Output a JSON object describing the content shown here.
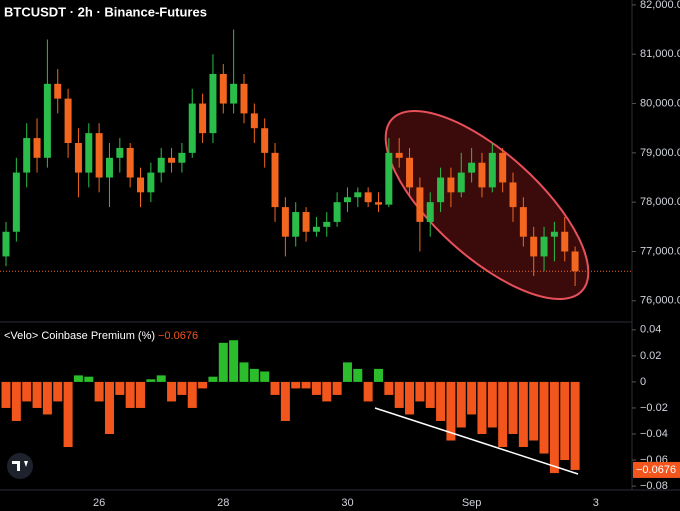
{
  "chart_data": [
    {
      "type": "candlestick",
      "title": "BTCUSDT · 2h · Binance-Futures",
      "up_color": "#2bbd4a",
      "down_color": "#f2661f",
      "open": [
        76900,
        77400,
        78600,
        79300,
        78900,
        80400,
        80100,
        79200,
        78600,
        79400,
        78500,
        78900,
        79100,
        78500,
        78200,
        78600,
        78900,
        78800,
        79000,
        80000,
        79400,
        80600,
        80000,
        80400,
        79800,
        79500,
        79000,
        77900,
        77300,
        77800,
        77400,
        77500,
        77600,
        78000,
        78100,
        78200,
        78000,
        77950,
        79000,
        78900,
        78300,
        77600,
        78000,
        78500,
        78200,
        78600,
        78800,
        78300,
        79000,
        78400,
        77900,
        77300,
        76900,
        77300,
        77400,
        77000
      ],
      "high": [
        77600,
        78900,
        79600,
        79700,
        81300,
        80700,
        80300,
        79500,
        79600,
        79600,
        79200,
        79300,
        79200,
        78700,
        78800,
        79100,
        79100,
        79200,
        80300,
        80200,
        81000,
        80800,
        81500,
        80600,
        80000,
        79700,
        79200,
        78100,
        78000,
        77900,
        77700,
        77800,
        78200,
        78300,
        78300,
        78300,
        78200,
        79300,
        79300,
        79100,
        78500,
        78200,
        78700,
        78700,
        79000,
        79100,
        79000,
        79200,
        79100,
        78600,
        78100,
        77500,
        77500,
        77600,
        77700,
        77100
      ],
      "low": [
        76700,
        77200,
        78300,
        78600,
        78700,
        79800,
        78900,
        78100,
        78300,
        78200,
        77900,
        78600,
        78300,
        77900,
        78000,
        78400,
        78600,
        78600,
        78900,
        79200,
        79200,
        79800,
        79800,
        79600,
        79200,
        78700,
        77600,
        76900,
        77100,
        77200,
        77300,
        77300,
        77500,
        77800,
        77900,
        77900,
        77800,
        77900,
        78700,
        78100,
        77000,
        77300,
        77800,
        77900,
        78100,
        78400,
        78100,
        78200,
        78200,
        77600,
        77100,
        76500,
        76600,
        76800,
        76800,
        76300
      ],
      "close": [
        77400,
        78600,
        79300,
        78900,
        80400,
        80100,
        79200,
        78600,
        79400,
        78500,
        78900,
        79100,
        78500,
        78200,
        78600,
        78900,
        78800,
        79000,
        80000,
        79400,
        80600,
        80000,
        80400,
        79800,
        79500,
        79000,
        77900,
        77300,
        77800,
        77400,
        77500,
        77600,
        78000,
        78100,
        78200,
        78000,
        77950,
        79000,
        78900,
        78300,
        77600,
        78000,
        78500,
        78200,
        78600,
        78800,
        78300,
        79000,
        78400,
        77900,
        77300,
        76900,
        77300,
        77400,
        77000,
        76600
      ],
      "xlim": [
        -0.58,
        60.5
      ],
      "xticks": [
        {
          "value": 9,
          "label": "26"
        },
        {
          "value": 21,
          "label": "28"
        },
        {
          "value": 33,
          "label": "30"
        },
        {
          "value": 45,
          "label": "Sep"
        },
        {
          "value": 57,
          "label": "3"
        }
      ],
      "ylim": [
        75570,
        82100
      ],
      "yticks": [
        {
          "value": 82000,
          "label": "82,000.0"
        },
        {
          "value": 81000,
          "label": "81,000.0"
        },
        {
          "value": 80000,
          "label": "80,000.0"
        },
        {
          "value": 79000,
          "label": "79,000.0"
        },
        {
          "value": 78000,
          "label": "78,000.0"
        },
        {
          "value": 77000,
          "label": "77,000.0"
        },
        {
          "value": 76000,
          "label": "76,000.0"
        }
      ]
    },
    {
      "type": "bar",
      "title": "<Velo> Coinbase Premium (%)",
      "up_color": "#2bbd2b",
      "down_color": "#f2561d",
      "values": [
        -0.02,
        -0.03,
        -0.015,
        -0.02,
        -0.025,
        -0.015,
        -0.05,
        0.005,
        0.004,
        -0.015,
        -0.04,
        -0.01,
        -0.02,
        -0.02,
        0.002,
        0.005,
        -0.015,
        -0.01,
        -0.02,
        -0.005,
        0.004,
        0.03,
        0.032,
        0.015,
        0.01,
        0.008,
        -0.01,
        -0.03,
        -0.005,
        -0.005,
        -0.01,
        -0.015,
        -0.01,
        0.015,
        0.01,
        -0.015,
        0.01,
        -0.01,
        -0.02,
        -0.025,
        -0.015,
        -0.02,
        -0.03,
        -0.045,
        -0.035,
        -0.025,
        -0.04,
        -0.035,
        -0.05,
        -0.04,
        -0.05,
        -0.045,
        -0.055,
        -0.07,
        -0.06,
        -0.0676
      ],
      "value_labels": [
        null,
        null,
        null,
        null,
        null,
        null,
        null,
        null,
        null,
        null,
        null,
        null,
        null,
        null,
        null,
        null,
        null,
        null,
        null,
        null,
        null,
        null,
        null,
        null,
        null,
        null,
        null,
        null,
        null,
        null,
        null,
        null,
        null,
        null,
        null,
        null,
        null,
        null,
        null,
        null,
        null,
        null,
        null,
        null,
        null,
        null,
        null,
        null,
        null,
        null,
        null,
        null,
        null,
        null,
        null,
        "−0.0676"
      ],
      "ylim": [
        -0.083,
        0.046
      ],
      "yticks": [
        0.04,
        0.02,
        0,
        {
          "value": -0.02,
          "label": "−0.02"
        },
        {
          "value": -0.04,
          "label": "−0.04"
        },
        {
          "value": -0.06,
          "label": "−0.06"
        },
        {
          "value": -0.08,
          "label": "−0.08"
        }
      ]
    }
  ]
}
